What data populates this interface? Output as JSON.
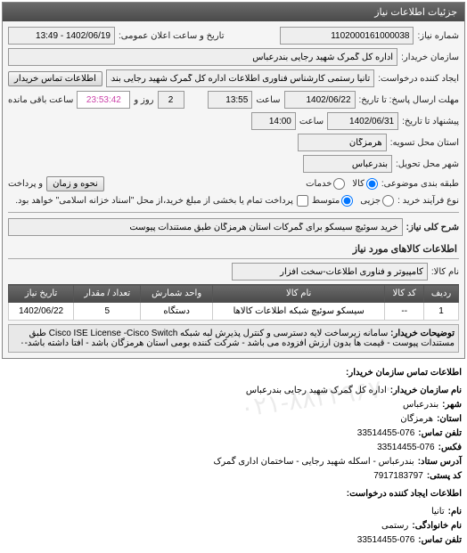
{
  "panel_title": "جزئیات اطلاعات نیاز",
  "request_number_label": "شماره نیاز:",
  "request_number": "1102000161000038",
  "public_datetime_label": "تاریخ و ساعت اعلان عمومی:",
  "public_datetime": "1402/06/19 - 13:49",
  "buyer_label": "سازمان خریدار:",
  "buyer": "اداره کل گمرک شهید رجایی بندرعباس",
  "creator_label": "ایجاد کننده درخواست:",
  "creator": "تانیا رستمی کارشناس فناوری اطلاعات اداره کل گمرک شهید رجایی بندرعباس",
  "buyer_contact_btn": "اطلاعات تماس خریدار",
  "deadline_label": "مهلت ارسال پاسخ: تا تاریخ:",
  "deadline_date": "1402/06/22",
  "deadline_time_label": "ساعت",
  "deadline_time": "13:55",
  "days_remain": "2",
  "days_remain_label": "روز و",
  "time_remain": "23:53:42",
  "time_remain_label": "ساعت باقی مانده",
  "bid_valid_label": "پیشنهاد تا تاریخ:",
  "bid_valid_date": "1402/06/31",
  "bid_valid_time_label": "ساعت",
  "bid_valid_time": "14:00",
  "province_label": "استان محل تسویه:",
  "province": "هرمزگان",
  "city_label": "شهر محل تحویل:",
  "city": "بندرعباس",
  "budget_label": "طبقه بندی موضوعی:",
  "budget_options": {
    "kala": "کالا",
    "khadamat": "خدمات"
  },
  "payment_label": "و پرداخت",
  "payment_btn": "نحوه و زمان",
  "process_label": "نوع فرآیند خرید :",
  "process_options": {
    "small": "جزیی",
    "medium": "متوسط"
  },
  "process_note": "پرداخت تمام یا بخشی از مبلغ خرید،از محل \"اسناد خزانه اسلامی\" خواهد بود.",
  "need_title_label": "شرح کلی نیاز:",
  "need_title": "خرید سوئیچ سیسکو برای گمرکات استان هرمزگان طبق مستندات پیوست",
  "goods_section": "اطلاعات کالاهای مورد نیاز",
  "goods_name_label": "نام کالا:",
  "goods_name": "کامپیوتر و فناوری اطلاعات-سخت افزار",
  "table": {
    "columns": [
      "ردیف",
      "کد کالا",
      "نام کالا",
      "واحد شمارش",
      "تعداد / مقدار",
      "تاریخ نیاز"
    ],
    "rows": [
      [
        "1",
        "--",
        "سیسکو سوئیچ شبکه اطلاعات کالاها",
        "دستگاه",
        "5",
        "1402/06/22"
      ]
    ]
  },
  "buyer_notes_label": "توضیحات خریدار:",
  "buyer_notes": "سامانه زیرساخت لایه دسترسی و کنترل پذیرش لبه شبکه Cisco ISE License -Cisco Switch طبق مستندات پیوست - قیمت ها بدون ارزش افزوده می باشد - شرکت کننده بومی استان هرمزگان باشد - افتا داشته باشد-۰",
  "contact": {
    "header": "اطلاعات تماس سازمان خریدار:",
    "org_label": "نام سازمان خریدار:",
    "org": "اداره کل گمرک شهید رجایی بندرعباس",
    "city_label": "شهر:",
    "city": "بندرعباس",
    "province_label": "استان:",
    "province": "هرمزگان",
    "tel_label": "تلفن تماس:",
    "tel": "33514455-076",
    "fax_label": "فکس:",
    "fax": "33514455-076",
    "address_label": "آدرس ستاد:",
    "address": "بندرعباس - اسکله شهید رجایی - ساختمان اداری گمرک",
    "postal_label": "کد پستی:",
    "postal": "7917183797",
    "creator_header": "اطلاعات ایجاد کننده درخواست:",
    "name_label": "نام:",
    "name": "تانیا",
    "family_label": "نام خانوادگی:",
    "family": "رستمی",
    "tel2_label": "تلفن تماس:",
    "tel2": "33514455-076"
  },
  "watermark": "۰۲۱-۸۸۳۴۹۶۷۰"
}
